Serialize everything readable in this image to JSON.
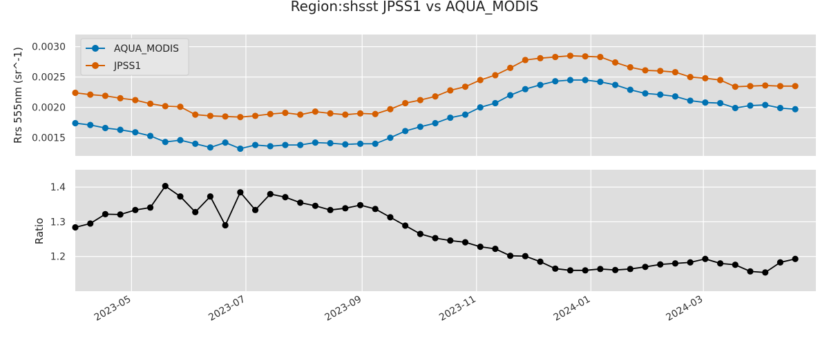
{
  "chart_data": [
    {
      "type": "line",
      "title": "Region:shsst JPSS1 vs AQUA_MODIS",
      "ylabel": "Rrs 555nm (sr^-1)",
      "ylim": [
        0.0012,
        0.0032
      ],
      "yticks": [
        0.0015,
        0.002,
        0.0025,
        0.003
      ],
      "ytick_labels": [
        "0.0015",
        "0.0020",
        "0.0025",
        "0.0030"
      ],
      "grid": true,
      "legend": "top-left",
      "series": [
        {
          "name": "AQUA_MODIS",
          "color": "#0072b2",
          "values": [
            0.00174,
            0.00171,
            0.00166,
            0.00163,
            0.00159,
            0.00153,
            0.00143,
            0.00146,
            0.0014,
            0.00134,
            0.00142,
            0.00132,
            0.00138,
            0.00136,
            0.00138,
            0.00138,
            0.00142,
            0.00141,
            0.00139,
            0.0014,
            0.0014,
            0.0015,
            0.00161,
            0.00168,
            0.00174,
            0.00183,
            0.00188,
            0.002,
            0.00207,
            0.0022,
            0.0023,
            0.00237,
            0.00243,
            0.00245,
            0.00245,
            0.00242,
            0.00237,
            0.00229,
            0.00223,
            0.00221,
            0.00218,
            0.00211,
            0.00208,
            0.00207,
            0.00199,
            0.00203,
            0.00204,
            0.00199,
            0.00197
          ]
        },
        {
          "name": "JPSS1",
          "color": "#d55e00",
          "values": [
            0.00224,
            0.00221,
            0.00219,
            0.00215,
            0.00212,
            0.00206,
            0.00202,
            0.00201,
            0.00188,
            0.00186,
            0.00185,
            0.00184,
            0.00186,
            0.00189,
            0.00191,
            0.00188,
            0.00193,
            0.0019,
            0.00188,
            0.0019,
            0.00189,
            0.00197,
            0.00207,
            0.00212,
            0.00218,
            0.00228,
            0.00234,
            0.00245,
            0.00253,
            0.00265,
            0.00278,
            0.00281,
            0.00283,
            0.00285,
            0.00284,
            0.00283,
            0.00274,
            0.00266,
            0.00261,
            0.0026,
            0.00258,
            0.0025,
            0.00248,
            0.00245,
            0.00234,
            0.00235,
            0.00236,
            0.00235,
            0.00235
          ]
        }
      ]
    },
    {
      "type": "line",
      "ylabel": "Ratio",
      "ylim": [
        1.1,
        1.45
      ],
      "yticks": [
        1.2,
        1.3,
        1.4
      ],
      "ytick_labels": [
        "1.2",
        "1.3",
        "1.4"
      ],
      "grid": true,
      "series": [
        {
          "color": "#000000",
          "values": [
            1.284,
            1.295,
            1.322,
            1.321,
            1.334,
            1.341,
            1.403,
            1.373,
            1.328,
            1.373,
            1.29,
            1.385,
            1.334,
            1.38,
            1.371,
            1.355,
            1.346,
            1.334,
            1.339,
            1.348,
            1.337,
            1.313,
            1.289,
            1.265,
            1.253,
            1.246,
            1.241,
            1.228,
            1.222,
            1.202,
            1.201,
            1.185,
            1.165,
            1.16,
            1.16,
            1.164,
            1.161,
            1.164,
            1.17,
            1.177,
            1.18,
            1.183,
            1.193,
            1.18,
            1.176,
            1.157,
            1.154,
            1.183,
            1.193
          ]
        }
      ]
    }
  ],
  "x_axis": {
    "x_start": "2023-04-01",
    "x_end": "2024-04-30",
    "dates": [
      "2023-04-01",
      "2023-04-09",
      "2023-04-17",
      "2023-04-25",
      "2023-05-03",
      "2023-05-11",
      "2023-05-19",
      "2023-05-27",
      "2023-06-04",
      "2023-06-12",
      "2023-06-20",
      "2023-06-28",
      "2023-07-06",
      "2023-07-14",
      "2023-07-22",
      "2023-07-30",
      "2023-08-07",
      "2023-08-15",
      "2023-08-23",
      "2023-08-31",
      "2023-09-08",
      "2023-09-16",
      "2023-09-24",
      "2023-10-02",
      "2023-10-10",
      "2023-10-18",
      "2023-10-26",
      "2023-11-03",
      "2023-11-11",
      "2023-11-19",
      "2023-11-27",
      "2023-12-05",
      "2023-12-13",
      "2023-12-21",
      "2023-12-29",
      "2024-01-06",
      "2024-01-14",
      "2024-01-22",
      "2024-01-30",
      "2024-02-07",
      "2024-02-15",
      "2024-02-23",
      "2024-03-02",
      "2024-03-10",
      "2024-03-18",
      "2024-03-26",
      "2024-04-03",
      "2024-04-11",
      "2024-04-19"
    ],
    "ticks": [
      "2023-05-01",
      "2023-07-01",
      "2023-09-01",
      "2023-11-01",
      "2024-01-01",
      "2024-03-01"
    ],
    "tick_labels": [
      "2023-05",
      "2023-07",
      "2023-09",
      "2023-11",
      "2024-01",
      "2024-03"
    ]
  },
  "colors": {
    "plot_bg": "#dedede",
    "grid": "#ffffff"
  }
}
